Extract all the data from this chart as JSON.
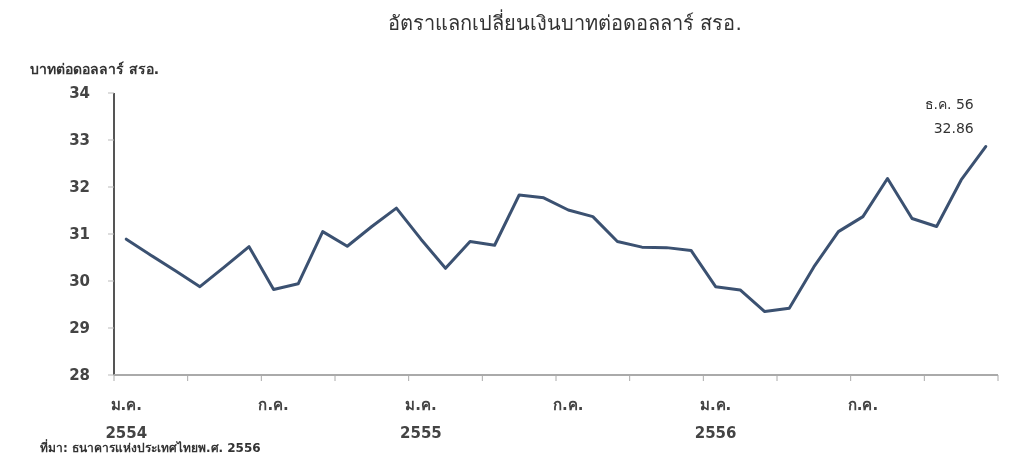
{
  "chart_data": {
    "type": "line",
    "title": "อัตราแลกเปลี่ยนเงินบาทต่อดอลลาร์ สรอ.",
    "ylabel": "บาทต่อดอลลาร์ สรอ.",
    "categories": [
      "ม.ค.\n2554",
      null,
      null,
      null,
      null,
      null,
      "ก.ค.",
      null,
      null,
      null,
      null,
      null,
      "ม.ค.\n2555",
      null,
      null,
      null,
      null,
      null,
      "ก.ค.",
      null,
      null,
      null,
      null,
      null,
      "ม.ค.\n2556",
      null,
      null,
      null,
      null,
      null,
      "ก.ค.",
      null,
      null,
      null,
      null,
      null
    ],
    "series": [
      {
        "color": "#3b5171",
        "values": [
          30.89,
          30.55,
          30.22,
          29.88,
          30.3,
          30.73,
          29.82,
          29.94,
          31.05,
          30.74,
          31.16,
          31.55,
          30.89,
          30.27,
          30.84,
          30.76,
          31.83,
          31.77,
          31.51,
          31.37,
          30.84,
          30.72,
          30.71,
          30.65,
          29.88,
          29.81,
          29.35,
          29.42,
          30.3,
          31.05,
          31.37,
          32.18,
          31.33,
          31.16,
          32.15,
          32.86
        ]
      }
    ],
    "ylim": [
      28,
      34
    ],
    "yticks": [
      28,
      29,
      30,
      31,
      32,
      33,
      34
    ],
    "grid": false,
    "marker": "none",
    "line_style": "solid",
    "annotations": [
      "ธ.ค. 56\n32.86",
      "ที่มา: ธนาคารแห่งประเทศไทยพ.ศ. 2556"
    ]
  }
}
